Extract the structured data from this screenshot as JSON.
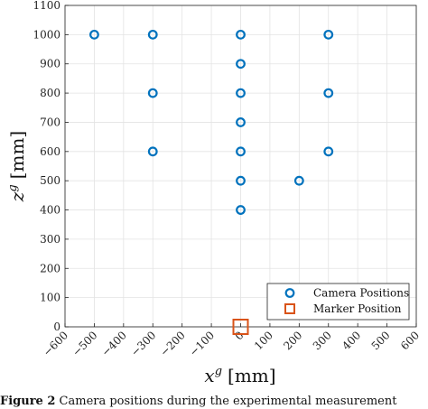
{
  "chart_data": {
    "type": "scatter",
    "xlabel_var": "x",
    "xlabel_sup": "g",
    "xlabel_unit": "[mm]",
    "ylabel_var": "z",
    "ylabel_sup": "g",
    "ylabel_unit": "[mm]",
    "xlim": [
      -600,
      600
    ],
    "ylim": [
      0,
      1100
    ],
    "xticks": [
      -600,
      -500,
      -400,
      -300,
      -200,
      -100,
      0,
      100,
      200,
      300,
      400,
      500,
      600
    ],
    "xtick_labels": [
      "−600",
      "−500",
      "−400",
      "−300",
      "−200",
      "−100",
      "0",
      "100",
      "200",
      "300",
      "400",
      "500",
      "600"
    ],
    "yticks": [
      0,
      100,
      200,
      300,
      400,
      500,
      600,
      700,
      800,
      900,
      1000,
      1100
    ],
    "ytick_labels": [
      "0",
      "100",
      "200",
      "300",
      "400",
      "500",
      "600",
      "700",
      "800",
      "900",
      "1000",
      "1100"
    ],
    "grid": true,
    "legend_position": "bottom-right",
    "series": [
      {
        "name": "Camera Positions",
        "marker": "circle",
        "color": "#0072bd",
        "points": [
          {
            "x": -500,
            "y": 1000
          },
          {
            "x": -300,
            "y": 1000
          },
          {
            "x": 0,
            "y": 1000
          },
          {
            "x": 300,
            "y": 1000
          },
          {
            "x": 0,
            "y": 900
          },
          {
            "x": -300,
            "y": 800
          },
          {
            "x": 0,
            "y": 800
          },
          {
            "x": 300,
            "y": 800
          },
          {
            "x": 0,
            "y": 700
          },
          {
            "x": -300,
            "y": 600
          },
          {
            "x": 0,
            "y": 600
          },
          {
            "x": 300,
            "y": 600
          },
          {
            "x": 0,
            "y": 500
          },
          {
            "x": 200,
            "y": 500
          },
          {
            "x": 0,
            "y": 400
          }
        ]
      },
      {
        "name": "Marker Position",
        "marker": "square",
        "color": "#d95319",
        "points": [
          {
            "x": 0,
            "y": 0
          }
        ]
      }
    ]
  },
  "caption": {
    "label": "Figure 2",
    "text": " Camera positions during the experimental measurement"
  }
}
